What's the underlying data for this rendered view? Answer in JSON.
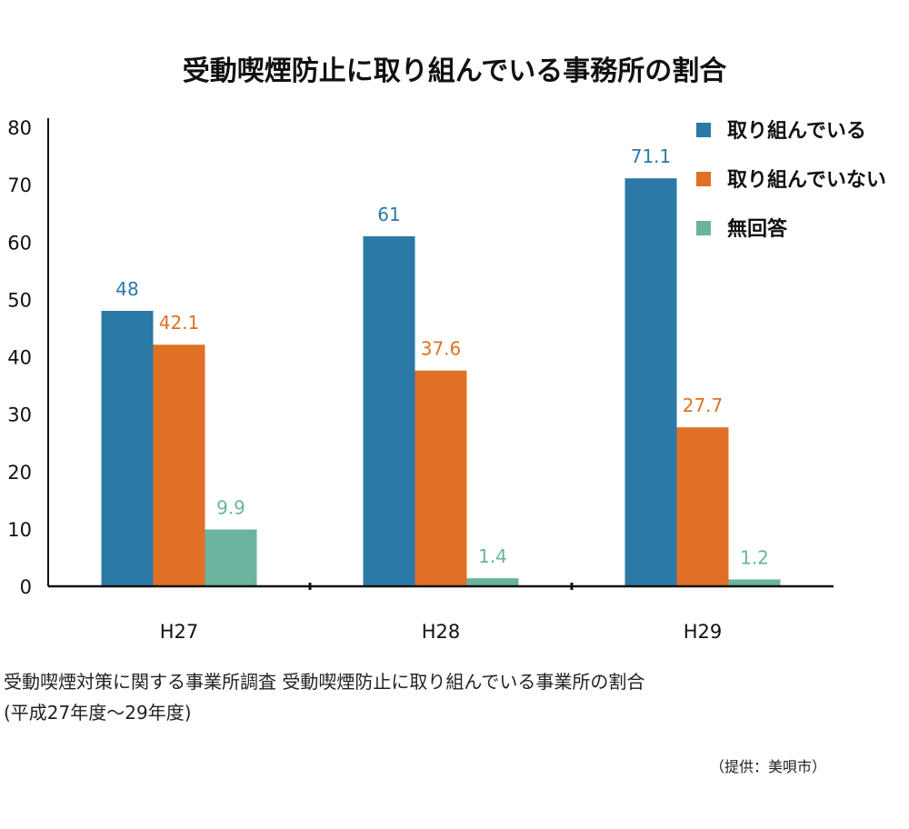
{
  "chart_data": {
    "type": "bar",
    "title": "受動喫煙防止に取り組んでいる事務所の割合",
    "categories": [
      "H27",
      "H28",
      "H29"
    ],
    "series": [
      {
        "name": "取り組んでいる",
        "values": [
          48,
          61,
          71.1
        ],
        "labels": [
          "48",
          "61",
          "71.1"
        ],
        "color": "#2b79a6"
      },
      {
        "name": "取り組んでいない",
        "values": [
          42.1,
          37.6,
          27.7
        ],
        "labels": [
          "42.1",
          "37.6",
          "27.7"
        ],
        "color": "#e07025"
      },
      {
        "name": "無回答",
        "values": [
          9.9,
          1.4,
          1.2
        ],
        "labels": [
          "9.9",
          "1.4",
          "1.2"
        ],
        "color": "#6bb39e"
      }
    ],
    "ylim": [
      0,
      80
    ],
    "yticks": [
      "0",
      "10",
      "20",
      "30",
      "40",
      "50",
      "60",
      "70",
      "80"
    ],
    "grid": false,
    "legend": "top-right"
  },
  "caption": {
    "line1": "受動喫煙対策に関する事業所調査 受動喫煙防止に取り組んでいる事業所の割合",
    "line2": "(平成27年度～29年度)"
  },
  "credit": "（提供：美唄市）"
}
